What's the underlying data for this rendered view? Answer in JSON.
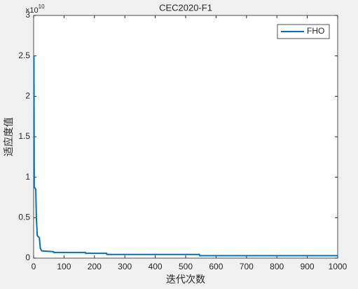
{
  "chart_data": {
    "type": "line",
    "title": "CEC2020-F1",
    "xlabel": "迭代次数",
    "ylabel": "适应度值",
    "y_multiplier": {
      "base": "×10",
      "exponent": "10"
    },
    "x": [
      1,
      2,
      7,
      9,
      12,
      19,
      22,
      27,
      65,
      66,
      170,
      171,
      240,
      241,
      545,
      546,
      1000
    ],
    "series": [
      {
        "name": "FHO",
        "color": "#0072bd",
        "values": [
          2.5,
          0.88,
          0.85,
          0.5,
          0.28,
          0.25,
          0.12,
          0.09,
          0.08,
          0.07,
          0.07,
          0.06,
          0.06,
          0.045,
          0.045,
          0.03,
          0.03
        ]
      }
    ],
    "xlim": [
      0,
      1000
    ],
    "xticks": [
      0,
      100,
      200,
      300,
      400,
      500,
      600,
      700,
      800,
      900,
      1000
    ],
    "ylim": [
      0,
      3
    ],
    "yticks": [
      0,
      0.5,
      1,
      1.5,
      2,
      2.5,
      3
    ],
    "grid": false,
    "legend": "top-right"
  }
}
